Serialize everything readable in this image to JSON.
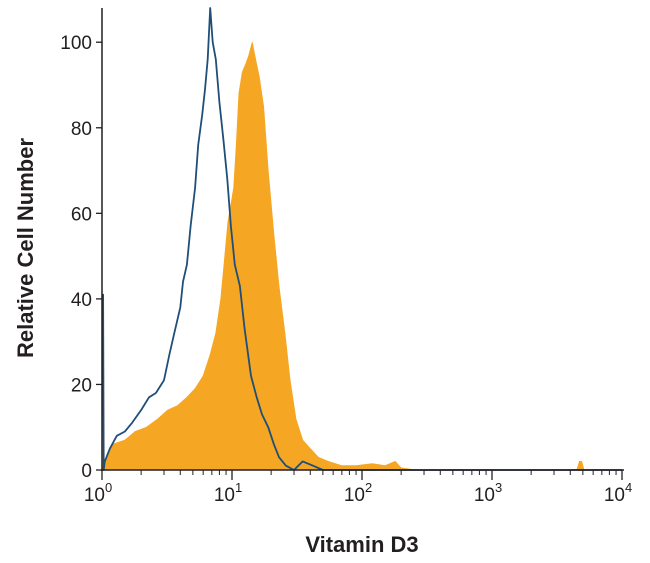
{
  "chart_data": {
    "type": "area",
    "title": "",
    "xlabel": "Vitamin D3",
    "ylabel": "Relative Cell Number",
    "x_scale": "log",
    "xlim": [
      1,
      10000
    ],
    "ylim": [
      0,
      108
    ],
    "grid": false,
    "legend": "none",
    "x_ticks": [
      {
        "base": "10",
        "exp": "0",
        "value": 1
      },
      {
        "base": "10",
        "exp": "1",
        "value": 10
      },
      {
        "base": "10",
        "exp": "2",
        "value": 100
      },
      {
        "base": "10",
        "exp": "3",
        "value": 1000
      },
      {
        "base": "10",
        "exp": "4",
        "value": 10000
      }
    ],
    "y_ticks": [
      "0",
      "20",
      "40",
      "60",
      "80",
      "100"
    ],
    "series": [
      {
        "style": "filled",
        "color": "#f5a623",
        "points": [
          [
            1.0,
            0
          ],
          [
            1.05,
            2
          ],
          [
            1.2,
            6
          ],
          [
            1.5,
            7
          ],
          [
            1.8,
            9
          ],
          [
            2.2,
            10
          ],
          [
            2.7,
            12
          ],
          [
            3.2,
            14
          ],
          [
            3.8,
            15
          ],
          [
            4.5,
            17
          ],
          [
            5.2,
            19
          ],
          [
            6.0,
            22
          ],
          [
            6.8,
            27
          ],
          [
            7.5,
            32
          ],
          [
            8.2,
            40
          ],
          [
            8.8,
            50
          ],
          [
            9.3,
            58
          ],
          [
            9.8,
            62
          ],
          [
            10.3,
            66
          ],
          [
            10.8,
            76
          ],
          [
            11.3,
            88
          ],
          [
            12.0,
            93
          ],
          [
            12.8,
            95
          ],
          [
            13.5,
            97
          ],
          [
            14.3,
            100
          ],
          [
            15.2,
            96
          ],
          [
            16.2,
            92
          ],
          [
            17.5,
            85
          ],
          [
            19.0,
            70
          ],
          [
            21.0,
            55
          ],
          [
            23.0,
            43
          ],
          [
            25.5,
            32
          ],
          [
            28.0,
            21
          ],
          [
            31.0,
            12
          ],
          [
            35.0,
            7
          ],
          [
            40.0,
            5
          ],
          [
            46.0,
            3
          ],
          [
            55.0,
            2
          ],
          [
            70.0,
            1
          ],
          [
            90.0,
            1
          ],
          [
            120.0,
            1.5
          ],
          [
            150.0,
            1
          ],
          [
            180.0,
            2
          ],
          [
            200.0,
            0.5
          ],
          [
            260.0,
            0
          ],
          [
            4500.0,
            0
          ],
          [
            4700.0,
            2
          ],
          [
            4900.0,
            2
          ],
          [
            5100.0,
            0
          ],
          [
            10000.0,
            0
          ]
        ]
      },
      {
        "style": "outline",
        "color": "#1f4e79",
        "points": [
          [
            1.0,
            41
          ],
          [
            1.02,
            41
          ],
          [
            1.03,
            0
          ],
          [
            1.05,
            2
          ],
          [
            1.15,
            5
          ],
          [
            1.3,
            8
          ],
          [
            1.5,
            9
          ],
          [
            1.7,
            11
          ],
          [
            2.0,
            14
          ],
          [
            2.3,
            17
          ],
          [
            2.6,
            18
          ],
          [
            3.0,
            21
          ],
          [
            3.3,
            27
          ],
          [
            3.6,
            32
          ],
          [
            4.0,
            38
          ],
          [
            4.2,
            44
          ],
          [
            4.5,
            48
          ],
          [
            4.8,
            57
          ],
          [
            5.2,
            66
          ],
          [
            5.5,
            76
          ],
          [
            5.9,
            83
          ],
          [
            6.2,
            89
          ],
          [
            6.5,
            96
          ],
          [
            6.8,
            108
          ],
          [
            7.1,
            100
          ],
          [
            7.5,
            96
          ],
          [
            8.0,
            86
          ],
          [
            8.6,
            77
          ],
          [
            9.2,
            68
          ],
          [
            9.8,
            57
          ],
          [
            10.5,
            48
          ],
          [
            11.5,
            43
          ],
          [
            12.5,
            33
          ],
          [
            14.0,
            22
          ],
          [
            15.5,
            17
          ],
          [
            17.0,
            13
          ],
          [
            19.0,
            10
          ],
          [
            21.0,
            6
          ],
          [
            23.0,
            3
          ],
          [
            26.0,
            1
          ],
          [
            30.0,
            0
          ],
          [
            35.0,
            2
          ],
          [
            42.0,
            1
          ],
          [
            50.0,
            0
          ],
          [
            10000.0,
            0
          ]
        ]
      }
    ]
  }
}
